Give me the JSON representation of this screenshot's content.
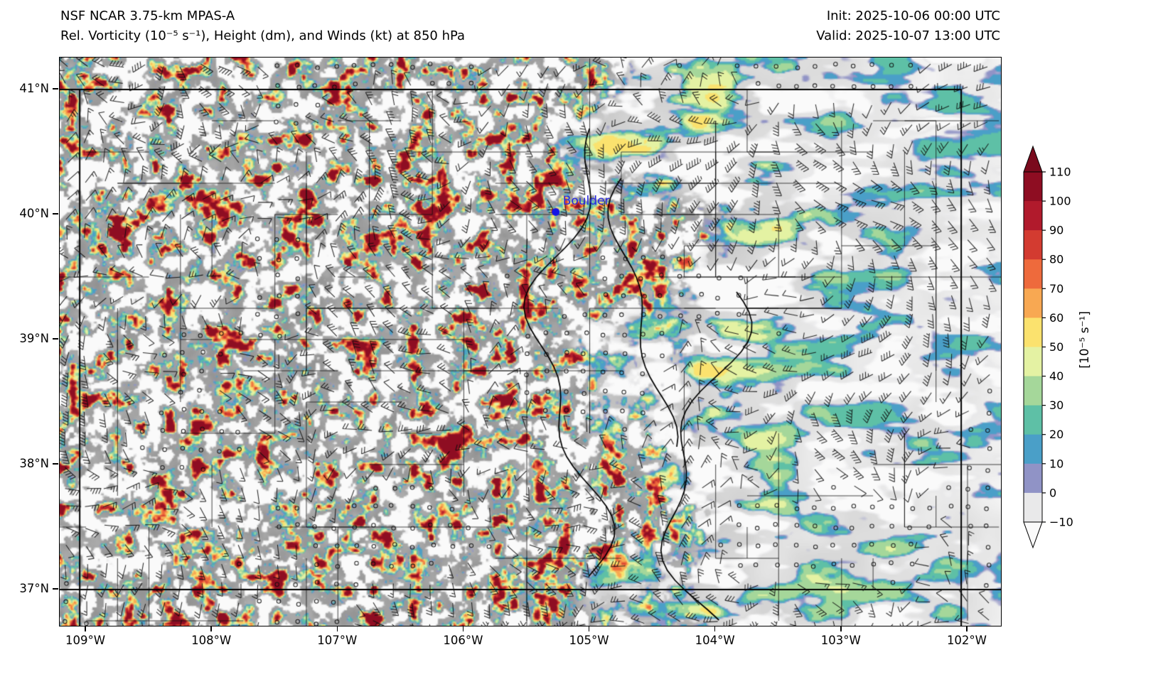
{
  "header": {
    "title_line1": "NSF NCAR 3.75-km MPAS-A",
    "title_line2": "Rel. Vorticity (10⁻⁵ s⁻¹), Height (dm), and Winds (kt) at 850 hPa",
    "init_label": "Init: 2025-10-06 00:00 UTC",
    "valid_label": "Valid: 2025-10-07 13:00 UTC"
  },
  "chart_data": {
    "type": "heatmap",
    "model": "NSF NCAR 3.75-km MPAS-A",
    "field": "Relative vorticity at 850 hPa",
    "units": "10⁻⁵ s⁻¹",
    "level": "850 hPa",
    "init_time": "2025-10-06 00:00 UTC",
    "valid_time": "2025-10-07 13:00 UTC",
    "x_axis": {
      "ticks": [
        {
          "label": "109°W",
          "lon": -109
        },
        {
          "label": "108°W",
          "lon": -108
        },
        {
          "label": "107°W",
          "lon": -107
        },
        {
          "label": "106°W",
          "lon": -106
        },
        {
          "label": "105°W",
          "lon": -105
        },
        {
          "label": "104°W",
          "lon": -104
        },
        {
          "label": "103°W",
          "lon": -103
        },
        {
          "label": "102°W",
          "lon": -102
        }
      ]
    },
    "y_axis": {
      "ticks": [
        {
          "label": "41°N",
          "lat": 41
        },
        {
          "label": "40°N",
          "lat": 40
        },
        {
          "label": "39°N",
          "lat": 39
        },
        {
          "label": "38°N",
          "lat": 38
        },
        {
          "label": "37°N",
          "lat": 37
        }
      ]
    },
    "extent": {
      "lon_min": -109.21,
      "lon_max": -101.74,
      "lat_min": 36.71,
      "lat_max": 41.26
    },
    "colorbar": {
      "label": "[10⁻⁵ s⁻¹]",
      "tick_labels": [
        "110",
        "100",
        "90",
        "80",
        "70",
        "60",
        "50",
        "40",
        "30",
        "20",
        "10",
        "0",
        "−10"
      ],
      "bins": [
        {
          "range": [
            -10,
            0
          ],
          "color": "#e9e9ea"
        },
        {
          "range": [
            0,
            10
          ],
          "color": "#9093c6"
        },
        {
          "range": [
            10,
            20
          ],
          "color": "#4a9fc8"
        },
        {
          "range": [
            20,
            30
          ],
          "color": "#5ec0a6"
        },
        {
          "range": [
            30,
            40
          ],
          "color": "#a5d79a"
        },
        {
          "range": [
            40,
            50
          ],
          "color": "#e4f2a3"
        },
        {
          "range": [
            50,
            60
          ],
          "color": "#fbe26e"
        },
        {
          "range": [
            60,
            70
          ],
          "color": "#f8a852"
        },
        {
          "range": [
            70,
            80
          ],
          "color": "#ee6a3c"
        },
        {
          "range": [
            80,
            90
          ],
          "color": "#d33b30"
        },
        {
          "range": [
            90,
            100
          ],
          "color": "#b11a2c"
        },
        {
          "range": [
            100,
            110
          ],
          "color": "#8e0d22"
        }
      ],
      "over_color": "#7a0a1d",
      "under_color": "#fafafa"
    },
    "annotations": [
      {
        "label": "Boulder",
        "lon": -105.27,
        "lat": 40.02,
        "marker_color": "#1414e6",
        "text_color": "#2a2ae0"
      }
    ],
    "overlays": [
      "county and state boundaries",
      "850 hPa geopotential height contours (dm)",
      "wind barbs (kt)"
    ],
    "notes": "Fine-scale positive/negative vorticity filaments over the mountains west of ~105°W; smoother, weaker banded vorticity over the eastern plains"
  }
}
